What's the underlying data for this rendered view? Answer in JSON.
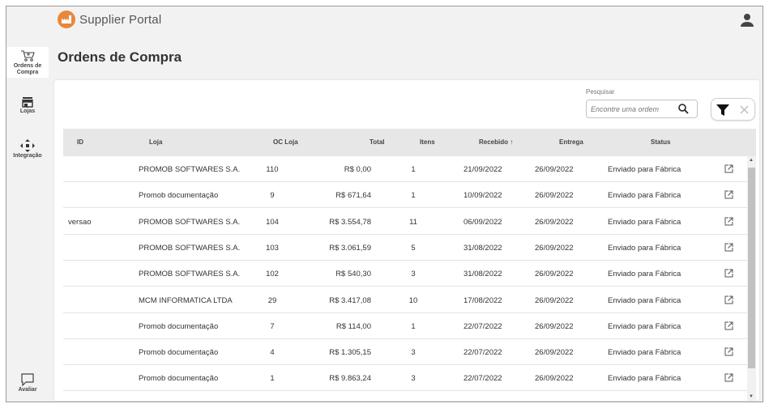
{
  "app": {
    "name": "Supplier Portal"
  },
  "sidebar": {
    "items": [
      {
        "label": "Ordens de Compra",
        "icon": "cart-icon"
      },
      {
        "label": "Lojas",
        "icon": "store-icon"
      },
      {
        "label": "Integração",
        "icon": "integration-icon"
      }
    ],
    "feedback": {
      "label": "Avaliar",
      "icon": "chat-icon"
    }
  },
  "page": {
    "title": "Ordens de Compra"
  },
  "search": {
    "label": "Pesquisar",
    "placeholder": "Encontre uma ordem"
  },
  "table": {
    "columns": [
      "ID",
      "Loja",
      "OC Loja",
      "Total",
      "Itens",
      "Recebido",
      "Entrega",
      "Status"
    ],
    "sort_indicator": "↑",
    "rows": [
      {
        "id": "",
        "loja": "PROMOB SOFTWARES S.A.",
        "oc": "110",
        "total": "R$ 0,00",
        "itens": "1",
        "recebido": "21/09/2022",
        "entrega": "26/09/2022",
        "status": "Enviado para Fábrica"
      },
      {
        "id": "",
        "loja": "Promob documentação",
        "oc": "9",
        "total": "R$ 671,64",
        "itens": "1",
        "recebido": "10/09/2022",
        "entrega": "26/09/2022",
        "status": "Enviado para Fábrica"
      },
      {
        "id": "versao",
        "loja": "PROMOB SOFTWARES S.A.",
        "oc": "104",
        "total": "R$ 3.554,78",
        "itens": "11",
        "recebido": "06/09/2022",
        "entrega": "26/09/2022",
        "status": "Enviado para Fábrica"
      },
      {
        "id": "",
        "loja": "PROMOB SOFTWARES S.A.",
        "oc": "103",
        "total": "R$ 3.061,59",
        "itens": "5",
        "recebido": "31/08/2022",
        "entrega": "26/09/2022",
        "status": "Enviado para Fábrica"
      },
      {
        "id": "",
        "loja": "PROMOB SOFTWARES S.A.",
        "oc": "102",
        "total": "R$ 540,30",
        "itens": "3",
        "recebido": "31/08/2022",
        "entrega": "26/09/2022",
        "status": "Enviado para Fábrica"
      },
      {
        "id": "",
        "loja": "MCM INFORMATICA LTDA",
        "oc": "29",
        "total": "R$ 3.417,08",
        "itens": "10",
        "recebido": "17/08/2022",
        "entrega": "26/09/2022",
        "status": "Enviado para Fábrica"
      },
      {
        "id": "",
        "loja": "Promob documentação",
        "oc": "7",
        "total": "R$ 114,00",
        "itens": "1",
        "recebido": "22/07/2022",
        "entrega": "26/09/2022",
        "status": "Enviado para Fábrica"
      },
      {
        "id": "",
        "loja": "Promob documentação",
        "oc": "4",
        "total": "R$ 1.305,15",
        "itens": "3",
        "recebido": "22/07/2022",
        "entrega": "26/09/2022",
        "status": "Enviado para Fábrica"
      },
      {
        "id": "",
        "loja": "Promob documentação",
        "oc": "1",
        "total": "R$ 9.863,24",
        "itens": "3",
        "recebido": "22/07/2022",
        "entrega": "26/09/2022",
        "status": "Enviado para Fábrica"
      }
    ]
  },
  "colors": {
    "accent": "#e8883a",
    "header_bg": "#e7e7e7",
    "app_bg": "#f2f2f2"
  }
}
